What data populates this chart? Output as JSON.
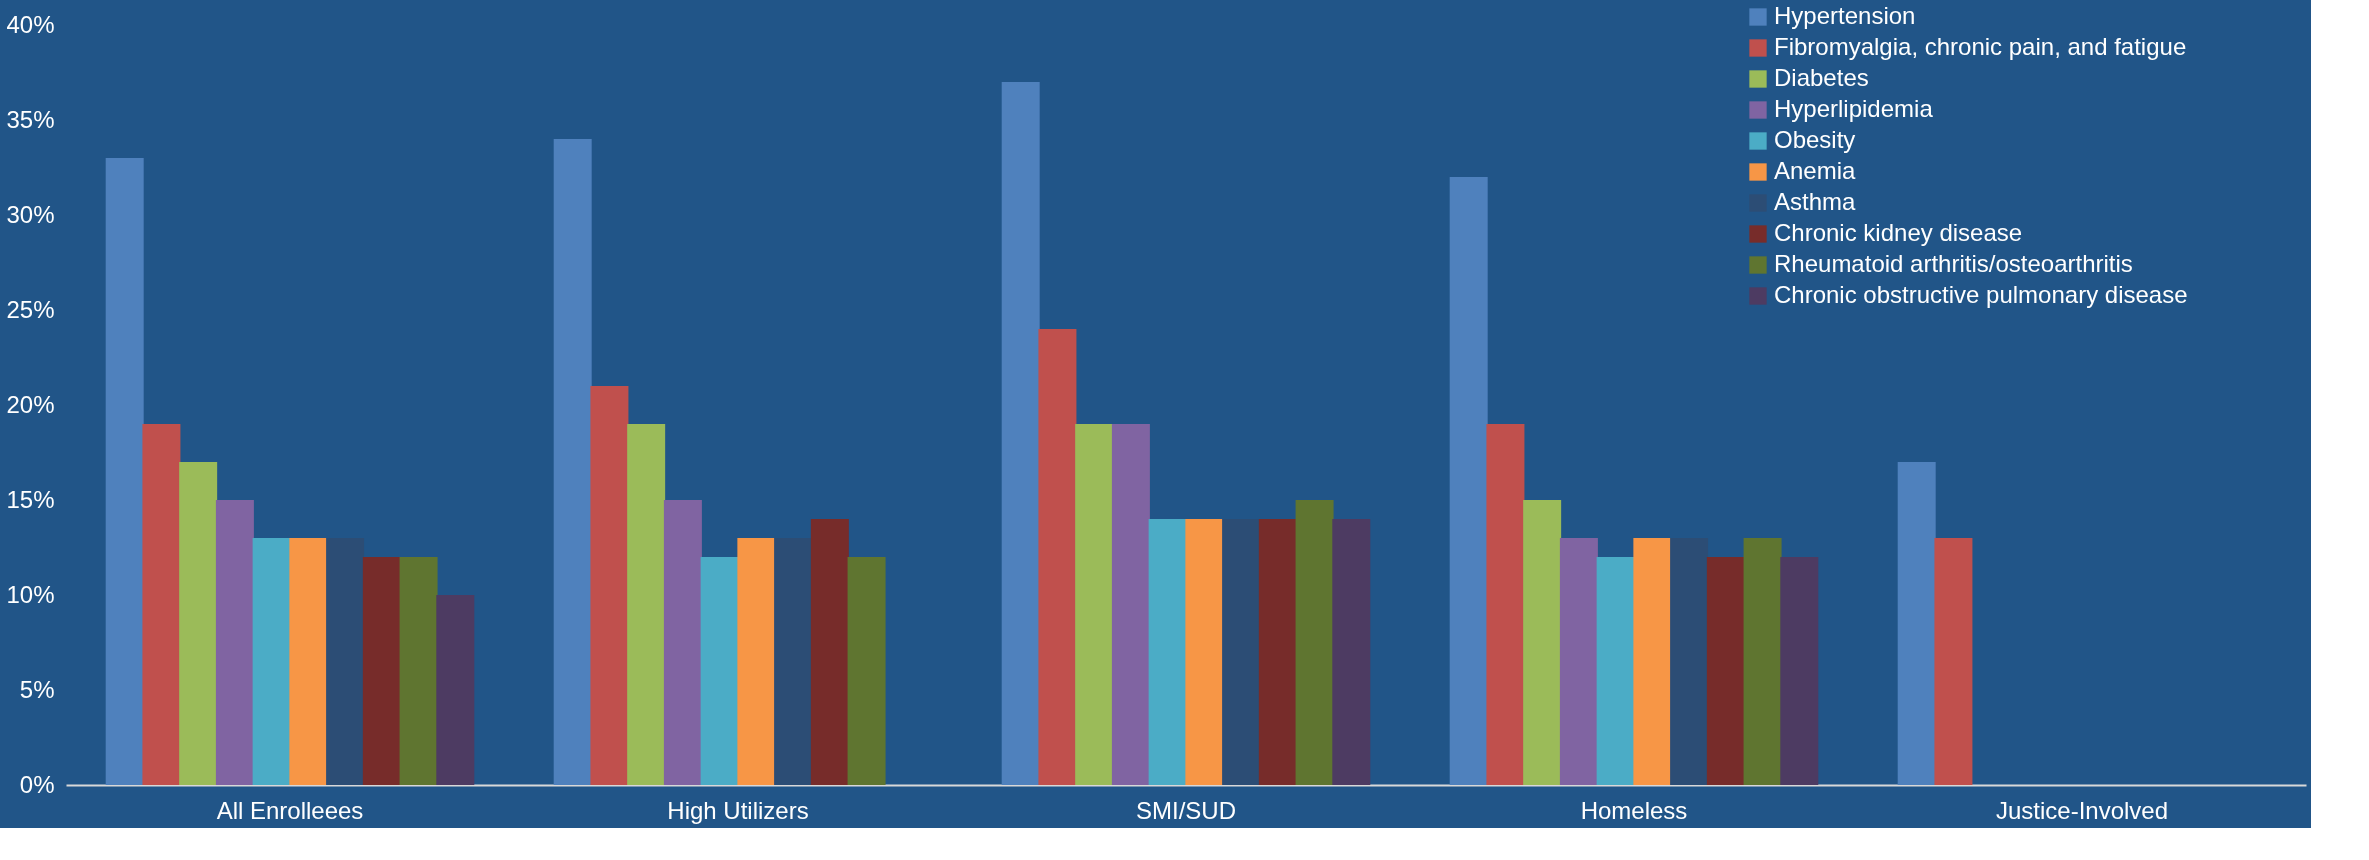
{
  "chart_data": {
    "type": "bar",
    "categories": [
      "All Enrolleees",
      "High Utilizers",
      "SMI/SUD",
      "Homeless",
      "Justice-Involved"
    ],
    "series": [
      {
        "name": "Hypertension",
        "color": "#4f81bd",
        "values": [
          33,
          34,
          37,
          32,
          17
        ]
      },
      {
        "name": "Fibromyalgia, chronic pain, and fatigue",
        "color": "#c0504d",
        "values": [
          19,
          21,
          24,
          19,
          13
        ]
      },
      {
        "name": "Diabetes",
        "color": "#9bbb59",
        "values": [
          17,
          19,
          19,
          15,
          null
        ]
      },
      {
        "name": "Hyperlipidemia",
        "color": "#8064a2",
        "values": [
          15,
          15,
          19,
          13,
          null
        ]
      },
      {
        "name": "Obesity",
        "color": "#4bacc6",
        "values": [
          13,
          12,
          14,
          12,
          null
        ]
      },
      {
        "name": "Anemia",
        "color": "#f79646",
        "values": [
          13,
          13,
          14,
          13,
          null
        ]
      },
      {
        "name": "Asthma",
        "color": "#2c4d75",
        "values": [
          13,
          13,
          14,
          13,
          null
        ]
      },
      {
        "name": "Chronic kidney disease",
        "color": "#772c2a",
        "values": [
          12,
          14,
          14,
          12,
          null
        ]
      },
      {
        "name": "Rheumatoid arthritis/osteoarthritis",
        "color": "#5f7530",
        "values": [
          12,
          12,
          15,
          13,
          null
        ]
      },
      {
        "name": "Chronic obstructive pulmonary disease",
        "color": "#4d3b62",
        "values": [
          10,
          null,
          14,
          12,
          null
        ]
      }
    ],
    "ylim": [
      0,
      40
    ],
    "yticks": [
      {
        "value": 0,
        "label": "0%"
      },
      {
        "value": 5,
        "label": "5%"
      },
      {
        "value": 10,
        "label": "10%"
      },
      {
        "value": 15,
        "label": "15%"
      },
      {
        "value": 20,
        "label": "20%"
      },
      {
        "value": 25,
        "label": "25%"
      },
      {
        "value": 30,
        "label": "30%"
      },
      {
        "value": 35,
        "label": "35%"
      },
      {
        "value": 40,
        "label": "40%"
      }
    ],
    "grid": false,
    "legend": "top right"
  }
}
